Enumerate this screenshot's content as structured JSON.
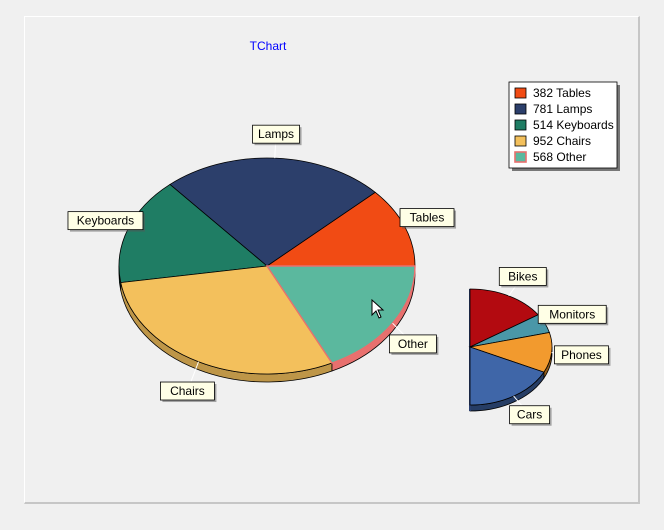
{
  "window": {
    "title": "TChart"
  },
  "chart_data": [
    {
      "type": "pie",
      "title": "TChart",
      "slices": [
        {
          "label": "Tables",
          "value": 382,
          "color": "#f14b14"
        },
        {
          "label": "Lamps",
          "value": 781,
          "color": "#2c3f6b"
        },
        {
          "label": "Keyboards",
          "value": 514,
          "color": "#1f7d64"
        },
        {
          "label": "Chairs",
          "value": 952,
          "color": "#f3c05c"
        },
        {
          "label": "Other",
          "value": 568,
          "color": "#5bb89e",
          "highlighted": true
        }
      ],
      "legend": {
        "placement": "top-right",
        "entries": [
          "382 Tables",
          "781 Lamps",
          "514 Keyboards",
          "952 Chairs",
          "568 Other"
        ]
      },
      "style": "3d"
    },
    {
      "type": "pie",
      "slices": [
        {
          "label": "Bikes",
          "value": 35,
          "color": "#b30a10"
        },
        {
          "label": "Monitors",
          "value": 12,
          "color": "#4a97a8"
        },
        {
          "label": "Phones",
          "value": 25,
          "color": "#f29a2e"
        },
        {
          "label": "Cars",
          "value": 40,
          "color": "#3f66a8"
        }
      ],
      "style": "3d half"
    }
  ]
}
